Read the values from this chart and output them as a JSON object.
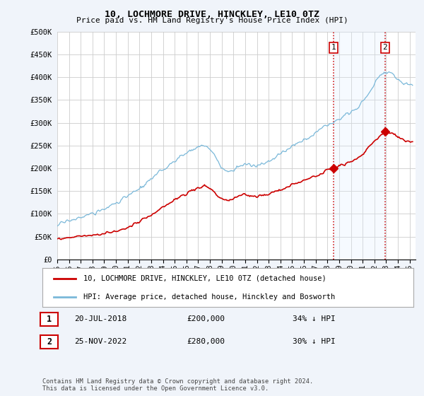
{
  "title": "10, LOCHMORE DRIVE, HINCKLEY, LE10 0TZ",
  "subtitle": "Price paid vs. HM Land Registry's House Price Index (HPI)",
  "ylabel_ticks": [
    "£0",
    "£50K",
    "£100K",
    "£150K",
    "£200K",
    "£250K",
    "£300K",
    "£350K",
    "£400K",
    "£450K",
    "£500K"
  ],
  "ytick_values": [
    0,
    50000,
    100000,
    150000,
    200000,
    250000,
    300000,
    350000,
    400000,
    450000,
    500000
  ],
  "ylim": [
    0,
    500000
  ],
  "xlim_start": 1995.0,
  "xlim_end": 2025.5,
  "hpi_color": "#7ab8d9",
  "price_color": "#cc0000",
  "marker_color": "#cc0000",
  "vline_color": "#cc0000",
  "shade_color": "#ddeeff",
  "legend_label_price": "10, LOCHMORE DRIVE, HINCKLEY, LE10 0TZ (detached house)",
  "legend_label_hpi": "HPI: Average price, detached house, Hinckley and Bosworth",
  "sale1_x": 2018.54,
  "sale1_y": 200000,
  "sale2_x": 2022.9,
  "sale2_y": 280000,
  "annotation1_date": "20-JUL-2018",
  "annotation1_price": "£200,000",
  "annotation1_pct": "34% ↓ HPI",
  "annotation2_date": "25-NOV-2022",
  "annotation2_price": "£280,000",
  "annotation2_pct": "30% ↓ HPI",
  "footnote": "Contains HM Land Registry data © Crown copyright and database right 2024.\nThis data is licensed under the Open Government Licence v3.0.",
  "background_color": "#f0f4fa",
  "plot_bg_color": "#ffffff",
  "grid_color": "#cccccc",
  "xtick_years": [
    1995,
    1996,
    1997,
    1998,
    1999,
    2000,
    2001,
    2002,
    2003,
    2004,
    2005,
    2006,
    2007,
    2008,
    2009,
    2010,
    2011,
    2012,
    2013,
    2014,
    2015,
    2016,
    2017,
    2018,
    2019,
    2020,
    2021,
    2022,
    2023,
    2024,
    2025
  ]
}
